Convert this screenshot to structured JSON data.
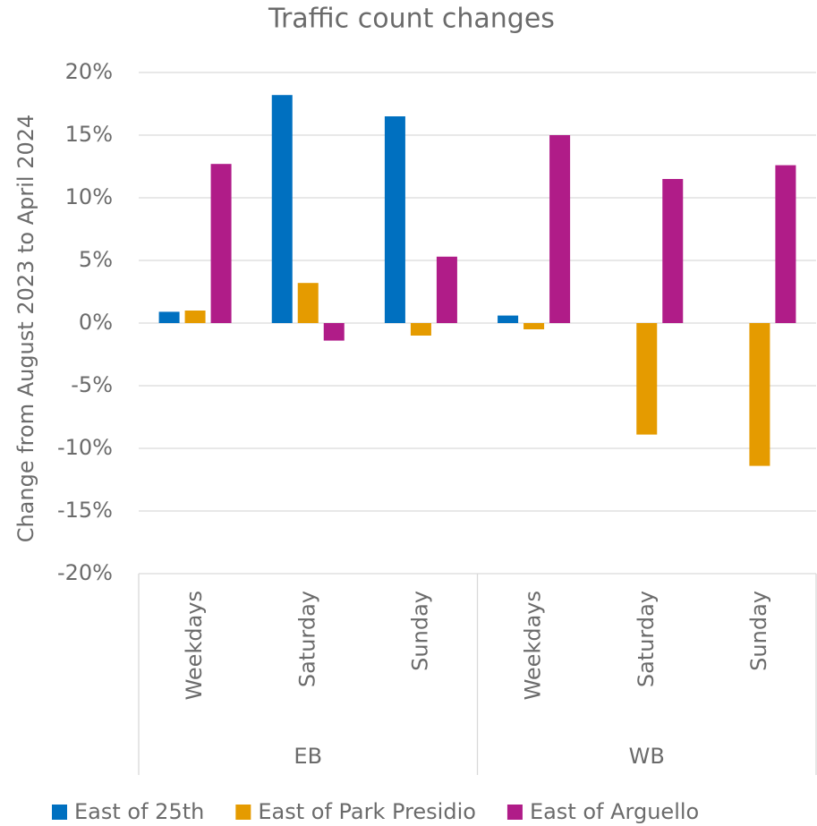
{
  "chart_data": {
    "type": "bar",
    "title": "Traffic count changes",
    "y_label": "Change from August 2023 to April 2024",
    "categories": [
      "Weekdays",
      "Saturday",
      "Sunday",
      "Weekdays",
      "Saturday",
      "Sunday"
    ],
    "groups": [
      {
        "label": "EB",
        "count": 3
      },
      {
        "label": "WB",
        "count": 3
      }
    ],
    "series": [
      {
        "name": "East of 25th",
        "color": "#0070c0",
        "values": [
          0.9,
          18.2,
          16.5,
          0.6,
          null,
          null
        ]
      },
      {
        "name": "East of Park Presidio",
        "color": "#e59b00",
        "values": [
          1.0,
          3.2,
          -1.0,
          -0.5,
          -8.9,
          -11.4
        ]
      },
      {
        "name": "East of Arguello",
        "color": "#b01c88",
        "values": [
          12.7,
          -1.4,
          5.3,
          15.0,
          11.5,
          12.6
        ]
      }
    ],
    "ylim": [
      -20,
      20
    ],
    "yticks": [
      {
        "value": -20,
        "label": "-20%"
      },
      {
        "value": -15,
        "label": "-15%"
      },
      {
        "value": -10,
        "label": "-10%"
      },
      {
        "value": -5,
        "label": "-5%"
      },
      {
        "value": 0,
        "label": "0%"
      },
      {
        "value": 5,
        "label": "5%"
      },
      {
        "value": 10,
        "label": "10%"
      },
      {
        "value": 15,
        "label": "15%"
      },
      {
        "value": 20,
        "label": "20%"
      }
    ],
    "grid": true,
    "legend": "bottom"
  }
}
